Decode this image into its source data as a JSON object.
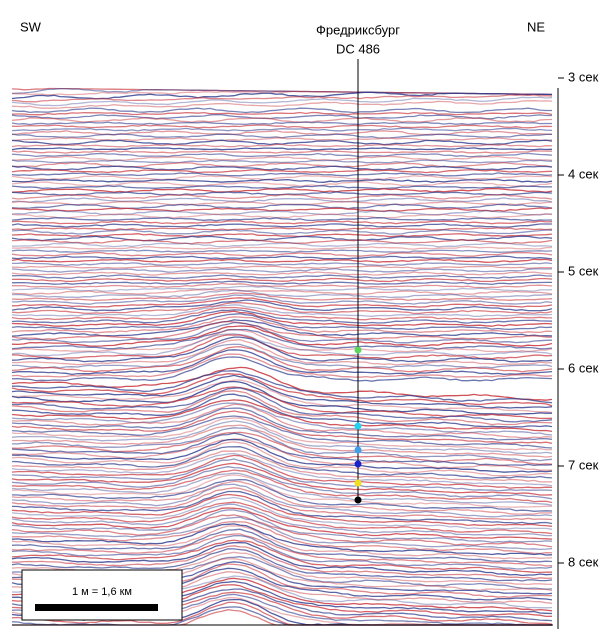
{
  "labels": {
    "left": "SW",
    "right": "NE"
  },
  "well": {
    "name": "Фредриксбург",
    "id": "DC 486"
  },
  "time_axis": {
    "ticks": [
      "3 сек",
      "4 сек",
      "5 сек",
      "6 сек",
      "7 сек",
      "8 сек"
    ]
  },
  "scale_bar": {
    "label": "1 м = 1,6 км"
  }
}
